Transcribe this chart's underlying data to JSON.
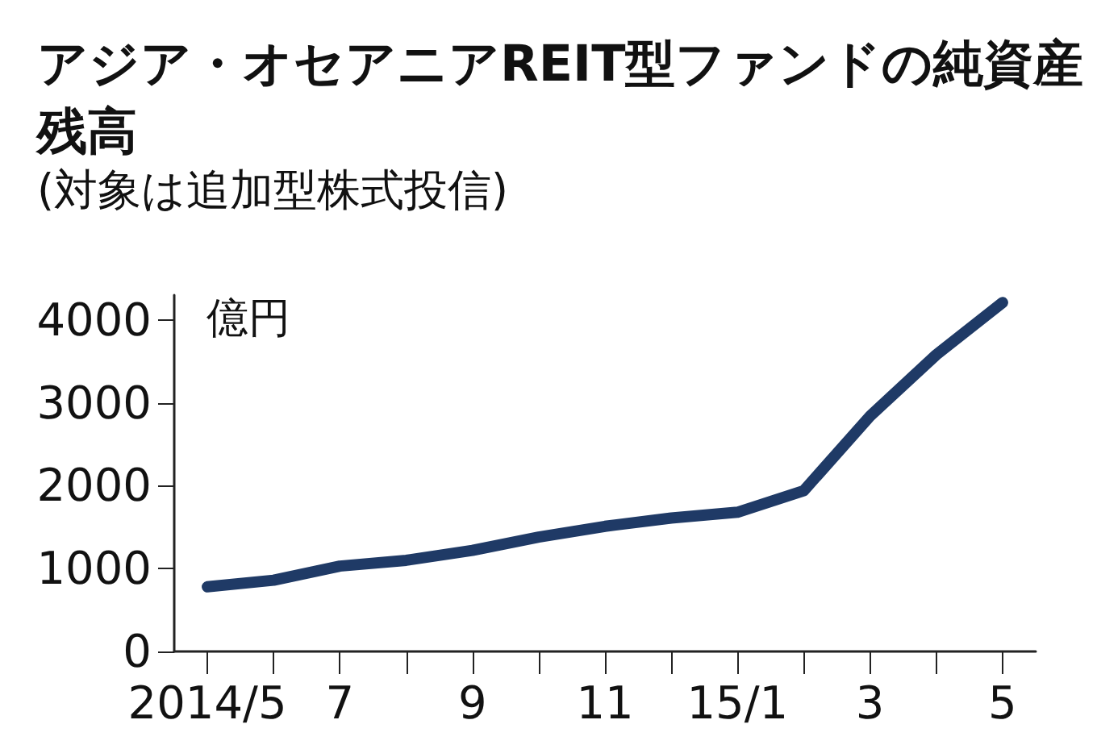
{
  "chart_data": {
    "type": "line",
    "title": "アジア・オセアニアREIT型ファンドの純資産残高",
    "subtitle": "(対象は追加型株式投信)",
    "ylabel": "億円",
    "categories": [
      "2014/5",
      null,
      "7",
      null,
      "9",
      null,
      "11",
      null,
      "15/1",
      null,
      "3",
      null,
      "5"
    ],
    "series": [
      {
        "color": "#1f3a66",
        "values": [
          780,
          860,
          1030,
          1100,
          1220,
          1380,
          1510,
          1610,
          1680,
          1940,
          2840,
          3580,
          4210
        ]
      }
    ],
    "ylim": [
      0,
      4300
    ],
    "yticks": [
      0,
      1000,
      2000,
      3000,
      4000
    ],
    "grid": false,
    "line_style": "solid"
  }
}
